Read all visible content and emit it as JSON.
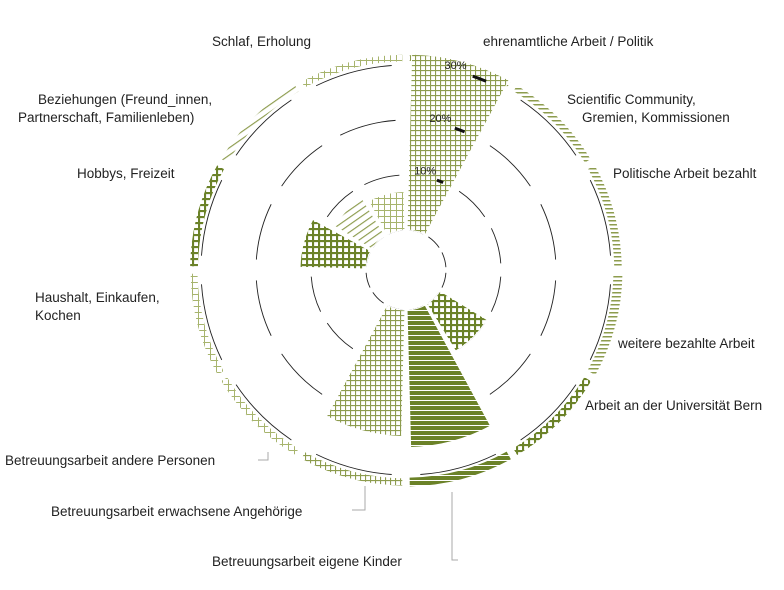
{
  "chart_data": {
    "type": "polar-area",
    "radial_unit": "%",
    "rlim": [
      0,
      30
    ],
    "rings": [
      10,
      20,
      30
    ],
    "tick_labels": [
      "10%",
      "20%",
      "30%"
    ],
    "grid": true,
    "series": [
      {
        "category": "Schlaf, Erholung",
        "value": 32,
        "outer_ring": 5,
        "color": "#dde4c3",
        "pattern": "grid",
        "label_side": "left"
      },
      {
        "category": "ehrenamtliche Arbeit / Politik",
        "value": 0,
        "outer_ring": 20,
        "color": "#a7b46d",
        "pattern": "hlines",
        "label_side": "right"
      },
      {
        "category": "Scientific Community, Gremien, Kommissionen",
        "value": 0,
        "outer_ring": 35,
        "color": "#a7b46d",
        "pattern": "hlines",
        "label_side": "right"
      },
      {
        "category": "Politische Arbeit bezahlt",
        "value": 0,
        "outer_ring": 60,
        "color": "#8d9c4e",
        "pattern": "hlines",
        "label_side": "right"
      },
      {
        "category": "weitere bezahlte Arbeit",
        "value": 10,
        "outer_ring": 40,
        "color": "#7e9038",
        "pattern": "hlines",
        "label_side": "right"
      },
      {
        "category": "Arbeit an der Universität Bern",
        "value": 25,
        "outer_ring": 55,
        "color": "#6b8228",
        "pattern": "hlines",
        "label_side": "right"
      },
      {
        "category": "Betreuungsarbeit eigene Kinder",
        "value": 23,
        "outer_ring": 30,
        "color": "#c6cf9c",
        "pattern": "grid",
        "label_side": "bottom"
      },
      {
        "category": "Betreuungsarbeit erwachsene Angehörige",
        "value": 0,
        "outer_ring": 25,
        "color": "#b8c287",
        "pattern": "grid",
        "label_side": "bottom"
      },
      {
        "category": "Betreuungsarbeit andere Personen",
        "value": 0,
        "outer_ring": 25,
        "color": "#b8c287",
        "pattern": "grid",
        "label_side": "left"
      },
      {
        "category": "Haushalt, Einkaufen, Kochen",
        "value": 12,
        "outer_ring": 40,
        "color": "#8d9c4e",
        "pattern": "grid",
        "label_side": "left"
      },
      {
        "category": "Hobbys, Freizeit",
        "value": 8,
        "outer_ring": 30,
        "color": "#b8c287",
        "pattern": "diag",
        "label_side": "left"
      },
      {
        "category": "Beziehungen (Freund_innen, Partnerschaft, Familienleben)",
        "value": 7,
        "outer_ring": 20,
        "color": "#c6cf9c",
        "pattern": "grid",
        "label_side": "left"
      }
    ],
    "labels": {
      "schlaf": "Schlaf, Erholung",
      "ehrenamt": "ehrenamtliche Arbeit / Politik",
      "scientific_1": "Scientific Community,",
      "scientific_2": "Gremien, Kommissionen",
      "politisch": "Politische Arbeit bezahlt",
      "weitere": "weitere bezahlte Arbeit",
      "uni": "Arbeit an der Universität Bern",
      "kinder": "Betreuungsarbeit eigene Kinder",
      "erwachsene": "Betreuungsarbeit erwachsene Angehörige",
      "andere": "Betreuungsarbeit andere Personen",
      "haushalt_1": "Haushalt, Einkaufen,",
      "haushalt_2": "Kochen",
      "hobbys": "Hobbys, Freizeit",
      "beziehungen_1": "Beziehungen (Freund_innen,",
      "beziehungen_2": "Partnerschaft, Familienleben)"
    }
  }
}
